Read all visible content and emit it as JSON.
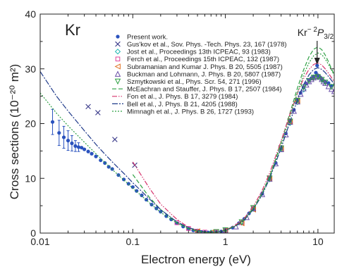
{
  "chart_data": {
    "type": "scatter",
    "panel_label": "Kr",
    "xlabel": "Electron energy (eV)",
    "ylabel": "Cross sections (10⁻²⁰ m²)",
    "xscale": "log",
    "xlim": [
      0.01,
      15
    ],
    "ylim": [
      0,
      40
    ],
    "x_ticks": [
      {
        "value": 0.01,
        "label": "0.01"
      },
      {
        "value": 0.1,
        "label": "0.1"
      },
      {
        "value": 1,
        "label": "1"
      },
      {
        "value": 10,
        "label": "10"
      }
    ],
    "y_ticks": [
      {
        "value": 0,
        "label": "0"
      },
      {
        "value": 10,
        "label": "10"
      },
      {
        "value": 20,
        "label": "20"
      },
      {
        "value": 30,
        "label": "30"
      },
      {
        "value": 40,
        "label": "40"
      }
    ],
    "legend_position": "top-right",
    "annotation": {
      "text_main": "Kr",
      "text_sup": "− 2",
      "text_p": "P",
      "text_sub": "3/2",
      "x": 9.8
    },
    "series": [
      {
        "name": "Present work.",
        "kind": "points",
        "marker": "circle",
        "color": "#2a52be",
        "x": [
          0.0136,
          0.016,
          0.018,
          0.02,
          0.022,
          0.024,
          0.026,
          0.028,
          0.03,
          0.033,
          0.036,
          0.04,
          0.045,
          0.05,
          0.055,
          0.06,
          0.07,
          0.08,
          0.09,
          0.1,
          0.11,
          0.125,
          0.14,
          0.16,
          0.18,
          0.2,
          0.23,
          0.26,
          0.3,
          0.35,
          0.4,
          0.45,
          0.5,
          0.55,
          0.6,
          0.65,
          0.7,
          0.75,
          0.8,
          0.9,
          1.0,
          1.2,
          1.4,
          1.6,
          1.8,
          2.0,
          2.5,
          3.0,
          3.5,
          4.0,
          4.5,
          5.0,
          5.5,
          6.0,
          6.5,
          7.0,
          7.5,
          8.0,
          8.5,
          9.0,
          9.5,
          9.8,
          10.0,
          10.5,
          11.0,
          11.5,
          12.0,
          13.0,
          14.0
        ],
        "y": [
          20.3,
          18.3,
          17.5,
          16.9,
          16.4,
          15.9,
          15.7,
          15.6,
          15.3,
          14.9,
          14.5,
          14.0,
          13.3,
          12.8,
          12.1,
          11.7,
          10.6,
          9.8,
          9.0,
          8.4,
          7.7,
          6.9,
          6.1,
          5.2,
          4.5,
          3.9,
          3.1,
          2.5,
          1.8,
          1.2,
          0.8,
          0.5,
          0.32,
          0.22,
          0.16,
          0.12,
          0.1,
          0.12,
          0.16,
          0.3,
          0.5,
          1.0,
          1.8,
          2.6,
          3.6,
          4.5,
          7.2,
          10.0,
          12.8,
          15.5,
          18.2,
          20.5,
          22.5,
          24.3,
          25.6,
          26.6,
          27.3,
          27.9,
          28.3,
          28.6,
          29.3,
          30.6,
          28.8,
          28.5,
          28.1,
          27.8,
          27.6,
          27.4,
          26.9
        ]
      },
      {
        "name": "Present work. error",
        "kind": "errorbars",
        "color": "#2a52be",
        "x": [
          0.0136,
          0.016,
          0.018,
          0.02,
          0.022,
          0.024,
          0.026
        ],
        "err": [
          2.3,
          2.3,
          2.0,
          1.8,
          1.4,
          1.0,
          0.8
        ]
      },
      {
        "name": "Gus'kov et al., Sov. Phys. -Tech. Phys. 23, 167 (1978)",
        "kind": "points",
        "marker": "x",
        "color": "#3a3a8a",
        "x": [
          0.033,
          0.042,
          0.064,
          0.105
        ],
        "y": [
          23.1,
          22.0,
          17.1,
          12.4
        ]
      },
      {
        "name": "Jost et al., Proceedings 13th ICPEAC, 93 (1983)",
        "kind": "points",
        "marker": "diamond",
        "color": "#18b5b0",
        "x": [
          0.5,
          0.7,
          1.0,
          1.5,
          2.0,
          3.0,
          4.0,
          5.0,
          6.0,
          7.0
        ],
        "y": [
          0.3,
          0.12,
          0.5,
          1.9,
          4.4,
          9.8,
          15.3,
          20.1,
          23.9,
          26.2
        ]
      },
      {
        "name": "Ferch et al., Proceedings 15th ICPEAC, 132 (1987)",
        "kind": "points",
        "marker": "square",
        "color": "#e0449a",
        "x": [
          0.3,
          0.4,
          0.5,
          0.6,
          0.8,
          1.0,
          1.5,
          2.0,
          3.0,
          4.0,
          5.0,
          6.0
        ],
        "y": [
          1.9,
          0.85,
          0.35,
          0.17,
          0.16,
          0.52,
          1.9,
          4.5,
          10.1,
          15.6,
          20.4,
          24.3
        ]
      },
      {
        "name": "Subramanian and Kumar J. Phys. B 20, 5505 (1987)",
        "kind": "points",
        "marker": "triangle-left",
        "color": "#e07020",
        "x": [
          0.5,
          0.7,
          1.0,
          1.5,
          2.0,
          3.0,
          4.0,
          5.0,
          6.0
        ],
        "y": [
          0.33,
          0.12,
          0.5,
          1.8,
          4.3,
          9.9,
          15.4,
          20.3,
          24.1
        ]
      },
      {
        "name": "Buckman and Lohmann, J. Phys. B 20, 5807 (1987)",
        "kind": "points",
        "marker": "triangle-up",
        "color": "#6a4fa8",
        "x": [
          1.0,
          1.3,
          1.7,
          2.0,
          2.5,
          3.0,
          3.5,
          4.0,
          4.5,
          5.0,
          5.5,
          6.0,
          6.5,
          7.0,
          7.5,
          8.0,
          8.5,
          9.0,
          9.5,
          10.0,
          10.5,
          11.0,
          11.5,
          12.0,
          13.0,
          14.0,
          15.0
        ],
        "y": [
          0.5,
          1.2,
          2.9,
          4.5,
          7.1,
          9.9,
          12.7,
          15.3,
          18.0,
          20.3,
          22.3,
          24.0,
          25.4,
          26.4,
          27.1,
          27.7,
          28.1,
          28.4,
          28.6,
          28.7,
          28.5,
          28.1,
          27.7,
          27.4,
          26.8,
          26.3,
          25.9
        ]
      },
      {
        "name": "Szmytkowski et al., Phys. Scr. 54, 271 (1996)",
        "kind": "points",
        "marker": "triangle-down",
        "color": "#2ea043",
        "x": [
          0.8,
          1.0,
          1.5,
          2.0,
          3.0,
          4.0,
          5.0,
          6.0,
          7.0,
          8.0,
          9.0,
          10.0,
          11.0,
          12.0,
          14.0
        ],
        "y": [
          0.2,
          0.55,
          2.0,
          4.6,
          10.0,
          15.5,
          20.4,
          24.2,
          26.6,
          27.8,
          28.4,
          28.5,
          28.0,
          27.5,
          26.7
        ]
      },
      {
        "name": "McEachran and Stauffer, J. Phys. B 17, 2507 (1984)",
        "kind": "line",
        "dash": "6,3",
        "color": "#2ea043",
        "x": [
          0.1,
          0.15,
          0.2,
          0.3,
          0.4,
          0.5,
          0.6,
          0.7,
          0.8,
          1.0,
          1.3,
          1.6,
          2.0,
          2.5,
          3.0,
          3.5,
          4.0,
          5.0,
          6.0,
          7.0,
          8.0,
          9.0,
          10.0,
          11.0,
          12.0,
          13.0,
          14.0,
          15.0
        ],
        "y": [
          10.7,
          6.6,
          4.3,
          1.9,
          0.8,
          0.33,
          0.13,
          0.09,
          0.16,
          0.55,
          1.4,
          2.6,
          4.5,
          7.3,
          10.3,
          13.5,
          16.6,
          22.0,
          26.5,
          29.8,
          32.2,
          33.6,
          34.0,
          33.5,
          32.5,
          31.3,
          30.0,
          28.9
        ]
      },
      {
        "name": "Fon et al., J. Phys. B 17, 3279 (1984)",
        "kind": "line",
        "dash": "7,2,1.5,2,1.5,2",
        "color": "#d6336c",
        "x": [
          0.1,
          0.15,
          0.2,
          0.3,
          0.4,
          0.5,
          0.6,
          0.7,
          0.8,
          1.0,
          1.3,
          1.6,
          2.0,
          2.5,
          3.0,
          4.0,
          5.0,
          6.0,
          7.0,
          8.0,
          9.0,
          10.0,
          11.0,
          12.0,
          13.0,
          14.0,
          15.0
        ],
        "y": [
          13.0,
          8.3,
          5.3,
          2.5,
          1.05,
          0.45,
          0.2,
          0.13,
          0.18,
          0.55,
          1.5,
          2.7,
          4.8,
          7.8,
          10.9,
          16.8,
          21.8,
          25.6,
          28.2,
          29.9,
          30.8,
          31.1,
          30.7,
          30.0,
          29.2,
          28.4,
          27.6
        ]
      },
      {
        "name": "Bell et al., J. Phys. B 21, 4205 (1988)",
        "kind": "line",
        "dash": "8,2,2,2",
        "color": "#1f3a8a",
        "x": [
          0.01,
          0.015,
          0.02,
          0.03,
          0.04,
          0.05,
          0.06,
          0.08,
          0.1,
          0.15,
          0.2,
          0.3,
          0.4,
          0.5,
          0.6,
          0.7,
          0.8,
          1.0,
          1.3,
          1.6,
          2.0,
          2.5,
          3.0,
          4.0,
          5.0,
          6.0,
          7.0,
          8.0,
          9.0,
          10.0,
          11.0,
          12.0,
          13.0,
          14.0,
          15.0
        ],
        "y": [
          29.5,
          25.0,
          22.3,
          18.7,
          16.2,
          14.4,
          13.0,
          10.9,
          9.2,
          6.3,
          4.3,
          2.05,
          1.0,
          0.5,
          0.25,
          0.14,
          0.15,
          0.45,
          1.3,
          2.4,
          4.3,
          7.0,
          9.9,
          15.5,
          20.4,
          24.3,
          27.1,
          28.9,
          29.9,
          30.2,
          29.9,
          29.3,
          28.6,
          27.9,
          27.2
        ]
      },
      {
        "name": "Mimnagh et al., J. Phys. B 26, 1727 (1993)",
        "kind": "line",
        "dash": "2,2",
        "color": "#2ea043",
        "x": [
          0.01,
          0.015,
          0.02,
          0.03,
          0.04,
          0.05,
          0.06,
          0.08,
          0.1,
          0.15,
          0.2,
          0.3,
          0.4,
          0.5,
          0.6,
          0.7,
          0.8,
          1.0,
          1.3,
          1.6,
          2.0,
          2.5,
          3.0,
          4.0,
          5.0,
          6.0,
          7.0,
          8.0,
          9.0,
          10.0,
          11.0,
          12.0,
          13.0,
          14.0,
          15.0
        ],
        "y": [
          25.6,
          21.9,
          19.6,
          16.6,
          14.5,
          12.9,
          11.6,
          9.7,
          8.2,
          5.6,
          3.8,
          1.8,
          0.85,
          0.4,
          0.19,
          0.11,
          0.14,
          0.48,
          1.35,
          2.5,
          4.4,
          7.2,
          10.2,
          16.0,
          21.3,
          25.6,
          28.9,
          31.1,
          32.4,
          32.9,
          32.6,
          31.8,
          30.8,
          29.8,
          28.8
        ]
      }
    ]
  }
}
